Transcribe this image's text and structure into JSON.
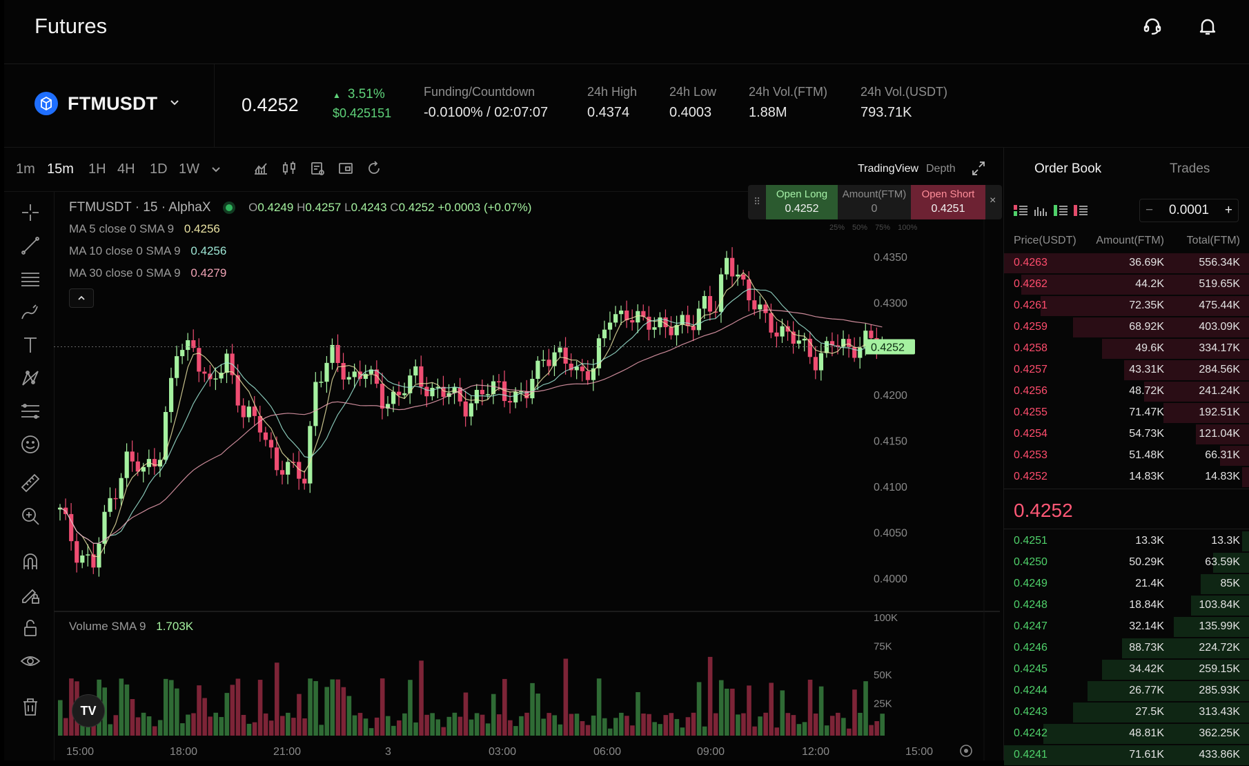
{
  "header": {
    "title": "Futures",
    "support_icon": "headset-icon",
    "notification_icon": "bell-icon"
  },
  "ticker": {
    "symbol": "FTMUSDT",
    "last_price": "0.4252",
    "change_pct": "3.51%",
    "change_usd": "$0.425151",
    "stats": [
      {
        "label": "Funding/Countdown",
        "value": "-0.0100% / 02:07:07"
      },
      {
        "label": "24h High",
        "value": "0.4374"
      },
      {
        "label": "24h Low",
        "value": "0.4003"
      },
      {
        "label": "24h Vol.(FTM)",
        "value": "1.88M"
      },
      {
        "label": "24h Vol.(USDT)",
        "value": "793.71K"
      }
    ]
  },
  "toolbar": {
    "timeframes": [
      "1m",
      "15m",
      "1H",
      "4H",
      "1D",
      "1W"
    ],
    "active_timeframe": "15m",
    "tradingview_label": "TradingView",
    "depth_label": "Depth"
  },
  "chart": {
    "legend_symbol": "FTMUSDT · 15 · AlphaX",
    "ohlc": {
      "o_label": "O",
      "o": "0.4249",
      "h_label": "H",
      "h": "0.4257",
      "l_label": "L",
      "l": "0.4243",
      "c_label": "C",
      "c": "0.4252",
      "change": "+0.0003 (+0.07%)"
    },
    "ma": [
      {
        "label": "MA 5 close 0 SMA 9",
        "value": "0.4256",
        "color": "#e9e2a3"
      },
      {
        "label": "MA 10 close 0 SMA 9",
        "value": "0.4256",
        "color": "#9ee6d5"
      },
      {
        "label": "MA 30 close 0 SMA 9",
        "value": "0.4279",
        "color": "#f0a3b5"
      }
    ],
    "volume_label": "Volume SMA 9",
    "volume_value": "1.703K",
    "price_axis": [
      "0.4350",
      "0.4300",
      "0.4250",
      "0.4200",
      "0.4150",
      "0.4100",
      "0.4050",
      "0.4000"
    ],
    "current_price_tag": "0.4252",
    "volume_axis": [
      "100K",
      "75K",
      "50K",
      "25K"
    ],
    "time_axis": [
      "15:00",
      "18:00",
      "21:00",
      "3",
      "03:00",
      "06:00",
      "09:00",
      "12:00",
      "15:00"
    ]
  },
  "trade_widget": {
    "open_long_label": "Open Long",
    "open_long_price": "0.4252",
    "amount_label": "Amount(FTM)",
    "amount_value": "0",
    "open_short_label": "Open Short",
    "open_short_price": "0.4251",
    "close_glyph": "×",
    "percents": [
      "25%",
      "50%",
      "75%",
      "100%"
    ]
  },
  "order_book": {
    "tab_order_book": "Order Book",
    "tab_trades": "Trades",
    "step_value": "0.0001",
    "minus": "−",
    "plus": "+",
    "col_price": "Price(USDT)",
    "col_amount": "Amount(FTM)",
    "col_total": "Total(FTM)",
    "mid_price": "0.4252",
    "asks": [
      {
        "price": "0.4263",
        "amount": "36.69K",
        "total": "556.34K",
        "depth": 1.0
      },
      {
        "price": "0.4262",
        "amount": "44.2K",
        "total": "519.65K",
        "depth": 0.93
      },
      {
        "price": "0.4261",
        "amount": "72.35K",
        "total": "475.44K",
        "depth": 0.85
      },
      {
        "price": "0.4259",
        "amount": "68.92K",
        "total": "403.09K",
        "depth": 0.72
      },
      {
        "price": "0.4258",
        "amount": "49.6K",
        "total": "334.17K",
        "depth": 0.6
      },
      {
        "price": "0.4257",
        "amount": "43.31K",
        "total": "284.56K",
        "depth": 0.51
      },
      {
        "price": "0.4256",
        "amount": "48.72K",
        "total": "241.24K",
        "depth": 0.43
      },
      {
        "price": "0.4255",
        "amount": "71.47K",
        "total": "192.51K",
        "depth": 0.35
      },
      {
        "price": "0.4254",
        "amount": "54.73K",
        "total": "121.04K",
        "depth": 0.22
      },
      {
        "price": "0.4253",
        "amount": "51.48K",
        "total": "66.31K",
        "depth": 0.12
      },
      {
        "price": "0.4252",
        "amount": "14.83K",
        "total": "14.83K",
        "depth": 0.03
      }
    ],
    "bids": [
      {
        "price": "0.4251",
        "amount": "13.3K",
        "total": "13.3K",
        "depth": 0.03
      },
      {
        "price": "0.4250",
        "amount": "50.29K",
        "total": "63.59K",
        "depth": 0.15
      },
      {
        "price": "0.4249",
        "amount": "21.4K",
        "total": "85K",
        "depth": 0.2
      },
      {
        "price": "0.4248",
        "amount": "18.84K",
        "total": "103.84K",
        "depth": 0.24
      },
      {
        "price": "0.4247",
        "amount": "32.14K",
        "total": "135.99K",
        "depth": 0.31
      },
      {
        "price": "0.4246",
        "amount": "88.73K",
        "total": "224.72K",
        "depth": 0.52
      },
      {
        "price": "0.4245",
        "amount": "34.42K",
        "total": "259.15K",
        "depth": 0.6
      },
      {
        "price": "0.4244",
        "amount": "26.77K",
        "total": "285.93K",
        "depth": 0.66
      },
      {
        "price": "0.4243",
        "amount": "27.5K",
        "total": "313.43K",
        "depth": 0.72
      },
      {
        "price": "0.4242",
        "amount": "48.81K",
        "total": "362.25K",
        "depth": 0.84
      },
      {
        "price": "0.4241",
        "amount": "71.61K",
        "total": "433.86K",
        "depth": 1.0
      }
    ]
  },
  "colors": {
    "up": "#a5f1a0",
    "down": "#ef4d72",
    "up_vol": "#2f6b35",
    "down_vol": "#7d2437",
    "ask_text": "#ff4d6d",
    "bid_text": "#4fd16a"
  }
}
